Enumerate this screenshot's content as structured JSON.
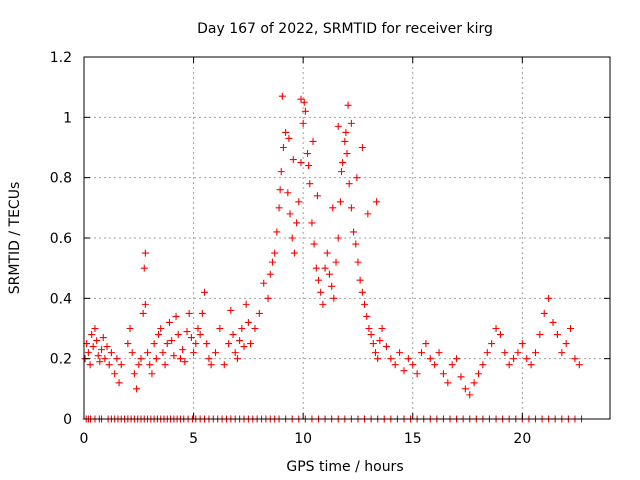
{
  "chart_data": {
    "type": "scatter",
    "title": "Day 167 of 2022, SRMTID for receiver kirg",
    "xlabel": "GPS time / hours",
    "ylabel": "SRMTID / TECUs",
    "xlim": [
      0,
      24
    ],
    "ylim": [
      0,
      1.2
    ],
    "xticks": [
      0,
      5,
      10,
      15,
      20
    ],
    "xtick_labels": [
      "0",
      "5",
      "10",
      "15",
      "20"
    ],
    "yticks": [
      0,
      0.2,
      0.4,
      0.6,
      0.8,
      1.0,
      1.2
    ],
    "ytick_labels": [
      "0",
      "0.2",
      "0.4",
      "0.6",
      "0.8",
      "1",
      "1.2"
    ],
    "grid": true,
    "marker": "plus",
    "color": "#ff0000",
    "series": [
      {
        "name": "SRMTID",
        "x": [
          0.05,
          0.12,
          0.2,
          0.28,
          0.35,
          0.42,
          0.5,
          0.58,
          0.65,
          0.72,
          0.8,
          0.88,
          0.95,
          1.05,
          1.15,
          1.25,
          1.4,
          1.5,
          1.6,
          1.7,
          2.0,
          2.1,
          2.2,
          2.3,
          2.4,
          2.5,
          2.6,
          2.7,
          2.75,
          2.8,
          2.9,
          3.0,
          3.1,
          3.2,
          3.3,
          3.4,
          3.5,
          3.6,
          3.7,
          3.8,
          3.9,
          4.0,
          4.1,
          4.2,
          4.3,
          4.4,
          4.5,
          4.6,
          4.7,
          4.8,
          4.9,
          5.0,
          5.1,
          5.2,
          5.3,
          5.4,
          5.5,
          5.6,
          5.7,
          5.8,
          6.0,
          6.2,
          6.4,
          6.6,
          6.7,
          6.8,
          6.9,
          7.0,
          7.1,
          7.2,
          7.3,
          7.4,
          7.5,
          7.6,
          7.8,
          8.0,
          8.2,
          8.4,
          8.5,
          8.6,
          8.7,
          8.8,
          8.9,
          9.0,
          9.1,
          9.2,
          9.3,
          9.4,
          9.5,
          9.6,
          9.7,
          9.8,
          9.9,
          10.0,
          10.1,
          10.2,
          10.3,
          10.4,
          10.5,
          10.6,
          10.7,
          10.8,
          10.9,
          11.0,
          11.1,
          11.2,
          11.3,
          11.4,
          11.5,
          11.6,
          11.7,
          11.8,
          11.9,
          12.0,
          12.1,
          12.2,
          12.3,
          12.4,
          12.5,
          12.6,
          12.7,
          12.8,
          12.9,
          13.0,
          13.1,
          13.2,
          13.3,
          13.4,
          13.5,
          13.6,
          13.8,
          14.0,
          14.2,
          14.4,
          14.6,
          14.8,
          15.0,
          15.2,
          15.4,
          15.6,
          15.8,
          16.0,
          16.2,
          16.4,
          16.6,
          16.8,
          17.0,
          17.2,
          17.4,
          17.6,
          17.8,
          18.0,
          18.2,
          18.4,
          18.6,
          18.8,
          19.0,
          19.2,
          19.4,
          19.6,
          19.8,
          20.0,
          20.2,
          20.4,
          20.6,
          20.8,
          21.0,
          21.2,
          21.4,
          21.6,
          21.8,
          22.0,
          22.2,
          22.4,
          22.6,
          2.8,
          9.05,
          9.9,
          10.05,
          12.05,
          12.2,
          11.6,
          9.35,
          10.45,
          12.7,
          11.95,
          9.55,
          10.25,
          11.75,
          12.45,
          8.95,
          10.65,
          11.35,
          12.95,
          13.35
        ],
        "y": [
          0.2,
          0.25,
          0.22,
          0.18,
          0.28,
          0.24,
          0.3,
          0.26,
          0.21,
          0.19,
          0.23,
          0.27,
          0.2,
          0.24,
          0.18,
          0.22,
          0.15,
          0.2,
          0.12,
          0.18,
          0.25,
          0.3,
          0.22,
          0.15,
          0.1,
          0.18,
          0.2,
          0.35,
          0.5,
          0.38,
          0.22,
          0.18,
          0.15,
          0.25,
          0.2,
          0.28,
          0.3,
          0.22,
          0.18,
          0.25,
          0.32,
          0.26,
          0.21,
          0.34,
          0.28,
          0.2,
          0.23,
          0.19,
          0.29,
          0.35,
          0.27,
          0.22,
          0.25,
          0.3,
          0.28,
          0.35,
          0.42,
          0.25,
          0.2,
          0.18,
          0.22,
          0.3,
          0.18,
          0.25,
          0.36,
          0.28,
          0.22,
          0.2,
          0.26,
          0.3,
          0.24,
          0.38,
          0.32,
          0.25,
          0.3,
          0.35,
          0.45,
          0.4,
          0.48,
          0.52,
          0.55,
          0.62,
          0.7,
          0.82,
          0.9,
          0.95,
          0.75,
          0.68,
          0.6,
          0.55,
          0.65,
          0.72,
          0.85,
          0.98,
          1.02,
          0.88,
          0.78,
          0.65,
          0.58,
          0.5,
          0.46,
          0.42,
          0.38,
          0.5,
          0.55,
          0.48,
          0.44,
          0.4,
          0.52,
          0.6,
          0.72,
          0.85,
          0.92,
          0.88,
          0.78,
          0.7,
          0.62,
          0.58,
          0.52,
          0.46,
          0.42,
          0.38,
          0.34,
          0.3,
          0.28,
          0.25,
          0.22,
          0.2,
          0.26,
          0.3,
          0.24,
          0.2,
          0.18,
          0.22,
          0.16,
          0.2,
          0.18,
          0.15,
          0.22,
          0.25,
          0.2,
          0.18,
          0.22,
          0.15,
          0.12,
          0.18,
          0.2,
          0.14,
          0.1,
          0.08,
          0.12,
          0.15,
          0.18,
          0.22,
          0.25,
          0.3,
          0.28,
          0.22,
          0.18,
          0.2,
          0.22,
          0.25,
          0.2,
          0.18,
          0.22,
          0.28,
          0.35,
          0.4,
          0.32,
          0.28,
          0.22,
          0.25,
          0.3,
          0.2,
          0.18,
          0.55,
          1.07,
          1.06,
          1.05,
          1.04,
          0.98,
          0.97,
          0.93,
          0.92,
          0.9,
          0.95,
          0.86,
          0.84,
          0.82,
          0.8,
          0.76,
          0.74,
          0.7,
          0.68,
          0.72
        ]
      }
    ],
    "zero_x": [
      0.1,
      0.2,
      0.3,
      0.5,
      0.7,
      0.8,
      1.1,
      1.25,
      1.4,
      1.55,
      1.7,
      1.85,
      2.0,
      2.15,
      2.3,
      2.45,
      2.6,
      2.75,
      2.9,
      3.05,
      3.2,
      3.35,
      3.5,
      3.65,
      3.8,
      3.95,
      4.1,
      4.25,
      4.4,
      4.55,
      4.75,
      4.95,
      5.1,
      5.3,
      5.5,
      5.7,
      5.9,
      6.1,
      6.3,
      6.5,
      6.7,
      6.9,
      7.1,
      7.3,
      7.5,
      7.7,
      7.9,
      8.1,
      8.3,
      8.5,
      8.7,
      8.9,
      9.2,
      9.5,
      9.8,
      10.1,
      10.4,
      10.7,
      11.0,
      11.3,
      11.6,
      11.9,
      12.2,
      12.5,
      12.8,
      13.1,
      13.4,
      13.7,
      14.0,
      14.3,
      14.6,
      14.9,
      15.2,
      15.5,
      15.8,
      16.1,
      16.4,
      16.7,
      17.0,
      17.3,
      17.6,
      17.9,
      18.2,
      18.5,
      18.8,
      19.1,
      19.4,
      19.7,
      20.0,
      20.3,
      20.6,
      20.9,
      21.2,
      21.5,
      21.8,
      22.1,
      22.4,
      22.7
    ]
  }
}
